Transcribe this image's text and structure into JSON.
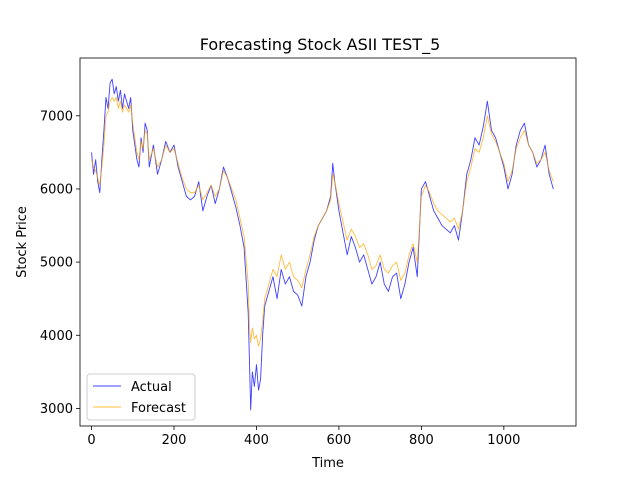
{
  "chart_data": {
    "type": "line",
    "title": "Forecasting Stock ASII TEST_5",
    "xlabel": "Time",
    "ylabel": "Stock Price",
    "xlim": [
      -28,
      1175
    ],
    "ylim": [
      2760,
      7790
    ],
    "xticks": [
      0,
      200,
      400,
      600,
      800,
      1000
    ],
    "yticks": [
      3000,
      4000,
      5000,
      6000,
      7000
    ],
    "legend": "lower-left",
    "grid": false,
    "series": [
      {
        "name": "Actual",
        "color": "#0000ff",
        "x": [
          0,
          5,
          10,
          15,
          20,
          25,
          30,
          35,
          40,
          45,
          50,
          55,
          60,
          65,
          70,
          75,
          80,
          85,
          90,
          95,
          100,
          105,
          110,
          115,
          120,
          125,
          130,
          135,
          140,
          150,
          160,
          170,
          180,
          190,
          200,
          210,
          220,
          230,
          240,
          250,
          260,
          270,
          280,
          290,
          300,
          310,
          320,
          330,
          340,
          350,
          360,
          370,
          380,
          383,
          386,
          390,
          395,
          400,
          405,
          410,
          415,
          420,
          430,
          440,
          450,
          460,
          470,
          480,
          490,
          500,
          510,
          520,
          530,
          540,
          550,
          560,
          570,
          580,
          585,
          590,
          600,
          610,
          620,
          630,
          640,
          650,
          660,
          670,
          680,
          690,
          700,
          710,
          720,
          730,
          740,
          750,
          760,
          770,
          780,
          790,
          800,
          810,
          820,
          830,
          840,
          850,
          860,
          870,
          880,
          890,
          900,
          910,
          920,
          930,
          940,
          950,
          960,
          970,
          980,
          990,
          1000,
          1010,
          1020,
          1030,
          1040,
          1050,
          1060,
          1070,
          1080,
          1090,
          1100,
          1110,
          1120
        ],
        "y": [
          6500,
          6200,
          6400,
          6100,
          5950,
          6400,
          6800,
          7250,
          7100,
          7450,
          7500,
          7300,
          7400,
          7200,
          7350,
          7100,
          7300,
          7200,
          7100,
          7250,
          6800,
          6600,
          6400,
          6300,
          6700,
          6500,
          6900,
          6800,
          6300,
          6600,
          6200,
          6400,
          6650,
          6500,
          6600,
          6300,
          6100,
          5900,
          5850,
          5900,
          6100,
          5700,
          5900,
          6050,
          5800,
          6000,
          6300,
          6150,
          5950,
          5750,
          5500,
          5200,
          4300,
          3650,
          2980,
          3500,
          3300,
          3600,
          3250,
          3400,
          4000,
          4400,
          4600,
          4800,
          4500,
          4900,
          4700,
          4800,
          4600,
          4550,
          4400,
          4800,
          5000,
          5300,
          5500,
          5600,
          5700,
          5900,
          6350,
          6100,
          5700,
          5400,
          5100,
          5350,
          5200,
          5000,
          5100,
          4900,
          4700,
          4800,
          5000,
          4700,
          4600,
          4800,
          4850,
          4500,
          4700,
          5000,
          5200,
          4800,
          6000,
          6100,
          5900,
          5700,
          5600,
          5500,
          5450,
          5400,
          5500,
          5300,
          5700,
          6200,
          6400,
          6700,
          6600,
          6850,
          7200,
          6800,
          6700,
          6500,
          6300,
          6000,
          6200,
          6600,
          6800,
          6900,
          6600,
          6500,
          6300,
          6400,
          6600,
          6200,
          6000
        ]
      },
      {
        "name": "Forecast",
        "color": "#ffa500",
        "x": [
          0,
          5,
          10,
          15,
          20,
          25,
          30,
          35,
          40,
          45,
          50,
          55,
          60,
          65,
          70,
          75,
          80,
          85,
          90,
          95,
          100,
          105,
          110,
          115,
          120,
          125,
          130,
          135,
          140,
          150,
          160,
          170,
          180,
          190,
          200,
          210,
          220,
          230,
          240,
          250,
          260,
          270,
          280,
          290,
          300,
          310,
          320,
          330,
          340,
          350,
          360,
          370,
          380,
          383,
          386,
          390,
          395,
          400,
          405,
          410,
          415,
          420,
          430,
          440,
          450,
          460,
          470,
          480,
          490,
          500,
          510,
          520,
          530,
          540,
          550,
          560,
          570,
          580,
          585,
          590,
          600,
          610,
          620,
          630,
          640,
          650,
          660,
          670,
          680,
          690,
          700,
          710,
          720,
          730,
          740,
          750,
          760,
          770,
          780,
          790,
          800,
          810,
          820,
          830,
          840,
          850,
          860,
          870,
          880,
          890,
          900,
          910,
          920,
          930,
          940,
          950,
          960,
          970,
          980,
          990,
          1000,
          1010,
          1020,
          1030,
          1040,
          1050,
          1060,
          1070,
          1080,
          1090,
          1100,
          1110,
          1120
        ],
        "y": [
          6400,
          6300,
          6250,
          6150,
          6050,
          6300,
          6600,
          7000,
          7050,
          7200,
          7250,
          7200,
          7250,
          7100,
          7200,
          7050,
          7150,
          7100,
          7050,
          7150,
          6900,
          6700,
          6500,
          6400,
          6650,
          6550,
          6800,
          6750,
          6400,
          6550,
          6300,
          6400,
          6600,
          6500,
          6550,
          6350,
          6150,
          6000,
          5950,
          5950,
          6050,
          5850,
          5950,
          6050,
          5900,
          6000,
          6250,
          6150,
          6000,
          5850,
          5600,
          5350,
          4700,
          4100,
          3900,
          4100,
          3950,
          4000,
          3850,
          3950,
          4200,
          4500,
          4700,
          4900,
          4800,
          5100,
          4900,
          5000,
          4800,
          4750,
          4650,
          4900,
          5100,
          5350,
          5500,
          5600,
          5700,
          5850,
          6200,
          6100,
          5800,
          5550,
          5300,
          5450,
          5350,
          5200,
          5250,
          5100,
          4900,
          4950,
          5100,
          4900,
          4850,
          4950,
          5000,
          4750,
          4850,
          5100,
          5250,
          5000,
          5900,
          6050,
          5950,
          5800,
          5700,
          5650,
          5600,
          5550,
          5600,
          5450,
          5700,
          6100,
          6300,
          6550,
          6500,
          6700,
          7000,
          6750,
          6650,
          6500,
          6350,
          6100,
          6250,
          6550,
          6700,
          6800,
          6600,
          6500,
          6350,
          6400,
          6500,
          6250,
          6100
        ]
      }
    ]
  }
}
